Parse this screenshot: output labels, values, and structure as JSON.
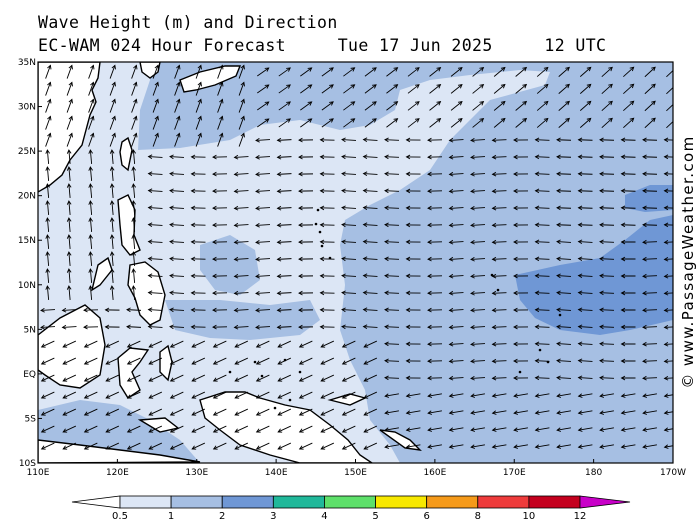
{
  "title": {
    "line1": "Wave Height (m) and Direction",
    "line2_left": "EC-WAM 024 Hour Forecast",
    "line2_date": "Tue 17 Jun 2025",
    "line2_time": "12 UTC"
  },
  "watermark": "© www.PassageWeather.com",
  "map": {
    "lat_labels": [
      "35N",
      "30N",
      "25N",
      "20N",
      "15N",
      "10N",
      "5N",
      "EQ",
      "5S",
      "10S"
    ],
    "lat_values": [
      35,
      30,
      25,
      20,
      15,
      10,
      5,
      0,
      -5,
      -10
    ],
    "lon_labels": [
      "110E",
      "120E",
      "130E",
      "140E",
      "150E",
      "160E",
      "170E",
      "180",
      "170W"
    ],
    "lon_values": [
      110,
      120,
      130,
      140,
      150,
      160,
      170,
      180,
      190
    ],
    "land_color": "#ffffff",
    "coast_color": "#000000"
  },
  "legend": {
    "labels": [
      "0.5",
      "1",
      "2",
      "3",
      "4",
      "5",
      "6",
      "8",
      "10",
      "12"
    ],
    "colors": [
      "#dce6f5",
      "#a6bfe3",
      "#6f97d5",
      "#20b89a",
      "#5ee06a",
      "#f7e800",
      "#f59a1a",
      "#ee3b3b",
      "#c4001e",
      "#c800c8"
    ],
    "low_color": "#ffffff"
  }
}
